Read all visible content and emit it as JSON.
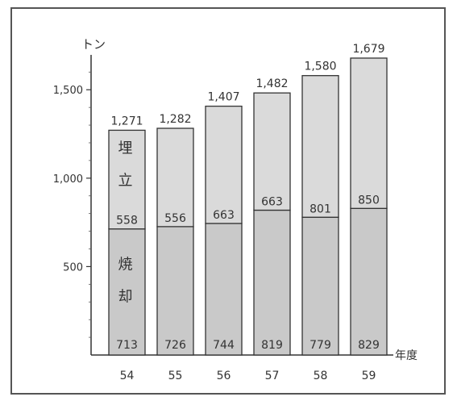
{
  "chart_data": {
    "type": "bar",
    "stacked": true,
    "ylabel": "トン",
    "xlabel": "年度",
    "ylim": [
      0,
      1679
    ],
    "yticks": [
      {
        "value": 500,
        "label": "500"
      },
      {
        "value": 1000,
        "label": "1,000"
      },
      {
        "value": 1500,
        "label": "1,500"
      }
    ],
    "categories": [
      "54",
      "55",
      "56",
      "57",
      "58",
      "59"
    ],
    "series": [
      {
        "name": "焼却",
        "values": [
          713,
          726,
          744,
          819,
          779,
          829
        ],
        "labels": [
          "713",
          "726",
          "744",
          "819",
          "779",
          "829"
        ]
      },
      {
        "name": "埋立",
        "values": [
          558,
          556,
          663,
          663,
          801,
          850
        ],
        "labels": [
          "558",
          "556",
          "663",
          "663",
          "801",
          "850"
        ]
      }
    ],
    "totals": [
      1271,
      1282,
      1407,
      1482,
      1580,
      1679
    ],
    "total_labels": [
      "1,271",
      "1,282",
      "1,407",
      "1,482",
      "1,580",
      "1,679"
    ],
    "grid": false,
    "legend": "inside-first-bar",
    "colors": {
      "lower": "#c9c9c9",
      "upper": "#dadada",
      "outline": "#333333",
      "frame": "#555555"
    }
  }
}
